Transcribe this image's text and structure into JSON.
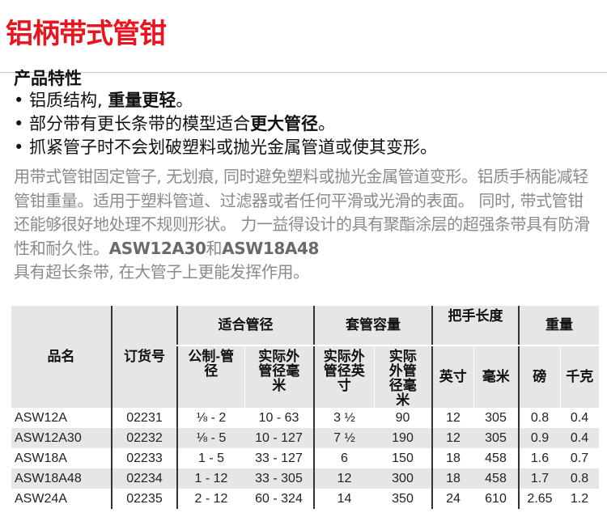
{
  "title": "铝柄带式管钳",
  "features": {
    "heading": "产品特性",
    "items": [
      {
        "text": "• 铝质结构, ",
        "bold": "重量更轻",
        "end": "。"
      },
      {
        "text": "• 部分带有更长条带的模型适合",
        "bold": "更大管径",
        "end": "。"
      },
      {
        "text": "• 抓紧管子时不会划破塑料或抛光金属管道或使其变形。",
        "bold": "",
        "end": ""
      }
    ]
  },
  "description": {
    "text": "用带式管钳固定管子, 无划痕, 同时避免塑料或抛光金属管道变形。铝质手柄能减轻管钳重量。适用于塑料管道、过滤器或者任何平滑或光滑的表面。 同时, 带式管钳还能够很好地处理不规则形状。 力一益得设计的具有聚酯涂层的超强条带具有防滑性和耐久性。",
    "model1": "ASW12A30",
    "and": "和",
    "model2": "ASW18A48",
    "tail": "具有超长条带, 在大管子上更能发挥作用。"
  },
  "table": {
    "headers": {
      "name": "品名",
      "order": "订货号",
      "pipe": "适合管径",
      "capacity": "套管容量",
      "handle": "把手长度",
      "weight": "重量",
      "pipe_nominal": "公制-管径",
      "pipe_od_mm": "实际外管径毫米",
      "cap_od_in": "实际外管径英寸",
      "cap_od_mm": "实际外管径毫米",
      "handle_in": "英寸",
      "handle_mm": "毫米",
      "weight_lb": "磅",
      "weight_kg": "千克"
    },
    "rows": [
      [
        "ASW12A",
        "02231",
        "⅛ - 2",
        "10 - 63",
        "3 ½",
        "90",
        "12",
        "305",
        "0.8",
        "0.4"
      ],
      [
        "ASW12A30",
        "02232",
        "⅛ - 5",
        "10 - 127",
        "7 ½",
        "190",
        "12",
        "305",
        "0.9",
        "0.4"
      ],
      [
        "ASW18A",
        "02233",
        "1 - 5",
        "33 - 127",
        "6",
        "150",
        "18",
        "458",
        "1.6",
        "0.7"
      ],
      [
        "ASW18A48",
        "02234",
        "1 - 12",
        "33 - 305",
        "12",
        "300",
        "18",
        "458",
        "1.7",
        "0.8"
      ],
      [
        "ASW24A",
        "02235",
        "2 - 12",
        "60 - 324",
        "14",
        "350",
        "24",
        "610",
        "2.65",
        "1.2"
      ]
    ]
  }
}
